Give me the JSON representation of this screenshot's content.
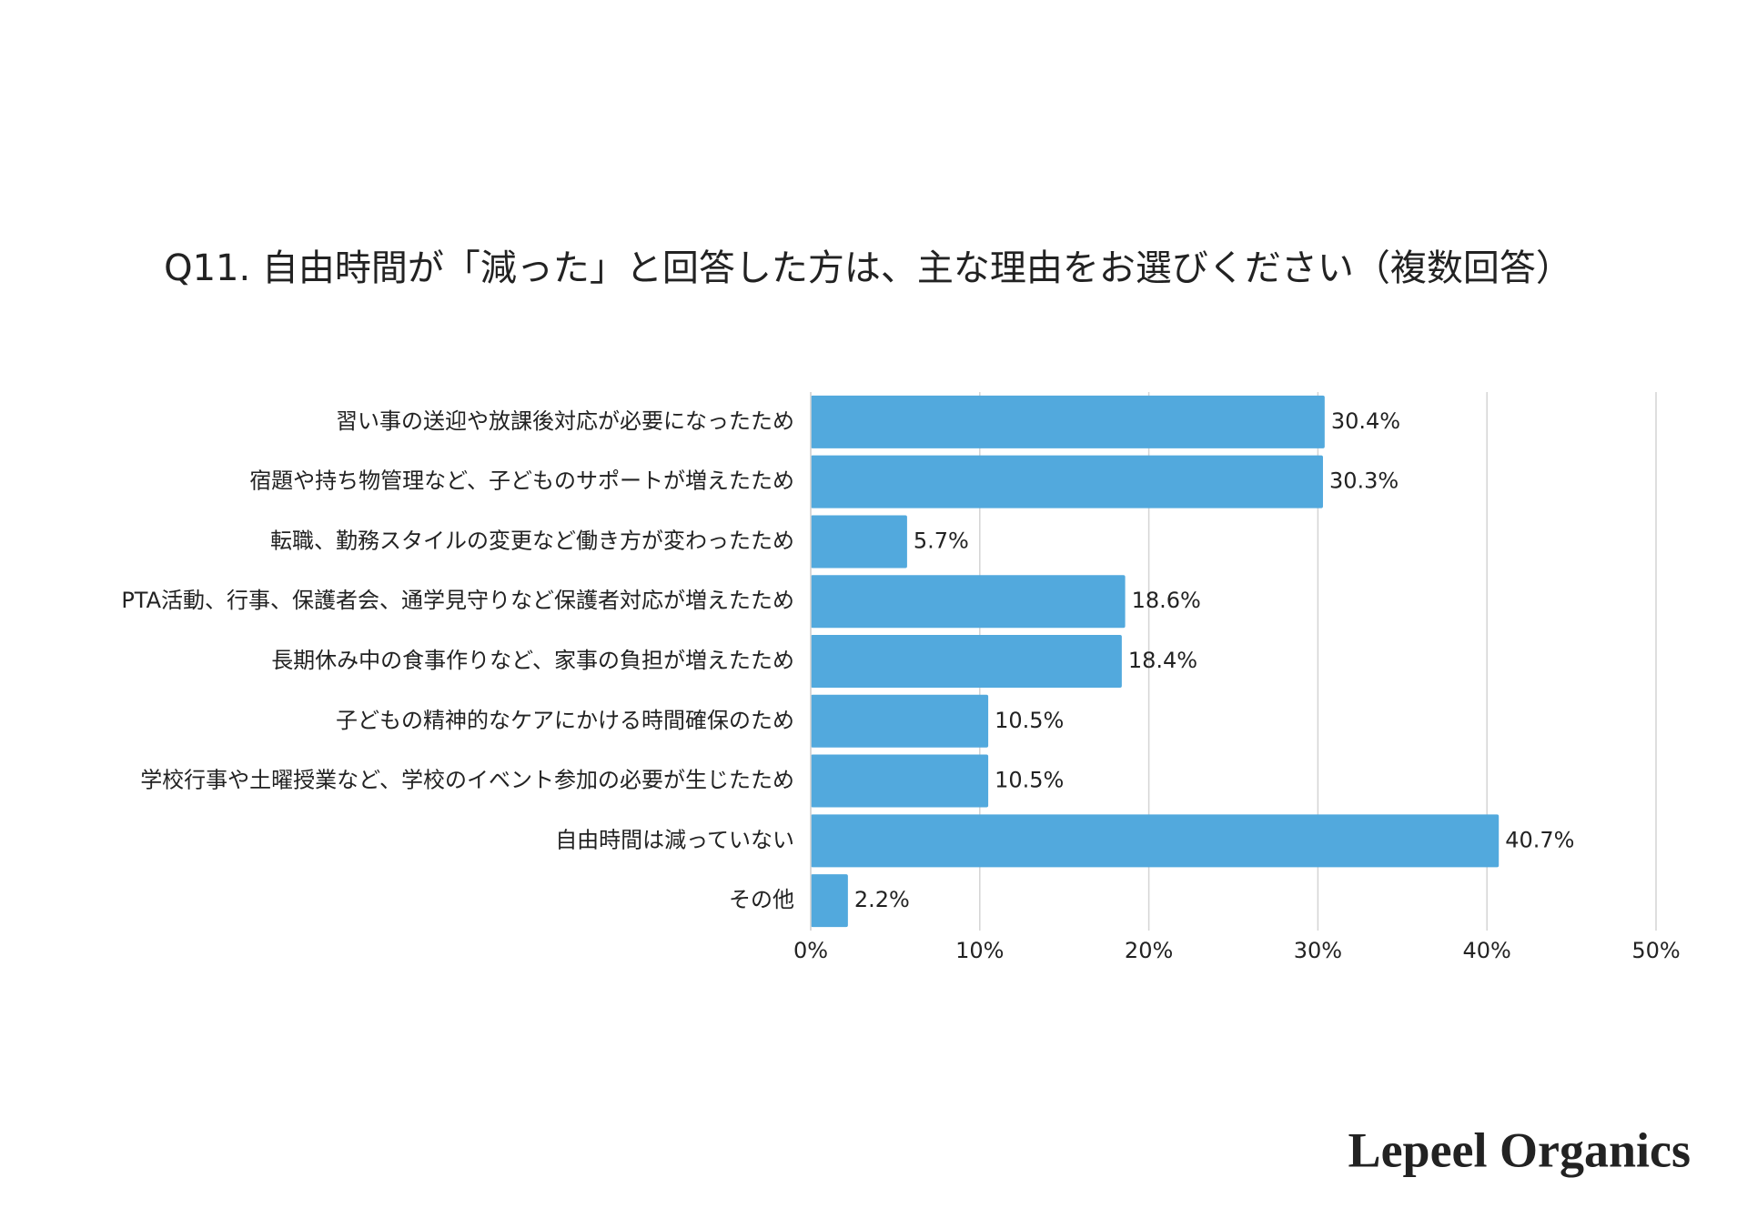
{
  "chart_data": {
    "type": "hbar",
    "title": "Q11. 自由時間が「減った」と回答した方は、主な理由をお選びください（複数回答）",
    "categories": [
      "習い事の送迎や放課後対応が必要になったため",
      "宿題や持ち物管理など、子どものサポートが増えたため",
      "転職、勤務スタイルの変更など働き方が変わったため",
      "PTA活動、行事、保護者会、通学見守りなど保護者対応が増えたため",
      "長期休み中の食事作りなど、家事の負担が増えたため",
      "子どもの精神的なケアにかける時間確保のため",
      "学校行事や土曜授業など、学校のイベント参加の必要が生じたため",
      "自由時間は減っていない",
      "その他"
    ],
    "values": [
      30.4,
      30.3,
      5.7,
      18.6,
      18.4,
      10.5,
      10.5,
      40.7,
      2.2
    ],
    "value_labels": [
      "30.4%",
      "30.3%",
      "5.7%",
      "18.6%",
      "18.4%",
      "10.5%",
      "10.5%",
      "40.7%",
      "2.2%"
    ],
    "color": "#52a9dd",
    "xlim": [
      0,
      50
    ],
    "xticks": [
      {
        "value": 0,
        "label": "0%"
      },
      {
        "value": 10,
        "label": "10%"
      },
      {
        "value": 20,
        "label": "20%"
      },
      {
        "value": 30,
        "label": "30%"
      },
      {
        "value": 40,
        "label": "40%"
      },
      {
        "value": 50,
        "label": "50%"
      }
    ],
    "grid": true
  },
  "brand": "Lepeel Organics"
}
